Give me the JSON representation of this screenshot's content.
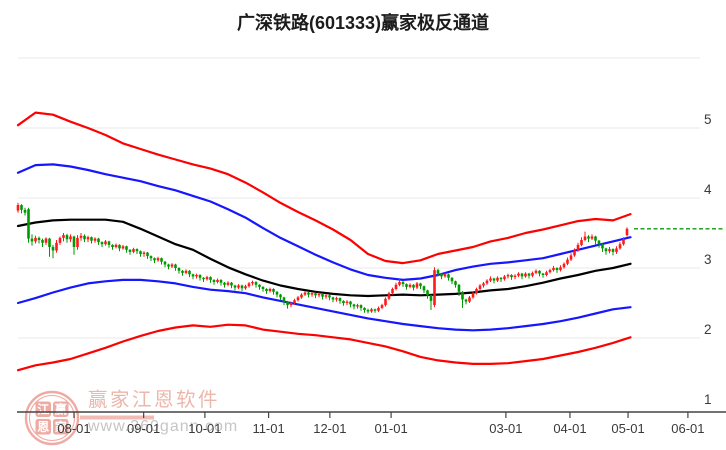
{
  "header": {
    "title": "广深铁路(601333)赢家极反通道"
  },
  "watermark": {
    "brand_text": "赢家江恩软件",
    "url_text": "www.360gann.com",
    "stamp_chars": [
      "江",
      "赢",
      "恩",
      "家"
    ]
  },
  "axes": {
    "y_labels": [
      "5",
      "4",
      "3",
      "2",
      "1"
    ],
    "y_values": [
      5,
      4,
      3,
      2,
      1
    ],
    "x_ticks": [
      {
        "label": "08-01",
        "index": 16
      },
      {
        "label": "09-01",
        "index": 35.9
      },
      {
        "label": "10-01",
        "index": 53.4
      },
      {
        "label": "11-01",
        "index": 71.6
      },
      {
        "label": "12-01",
        "index": 89.1
      },
      {
        "label": "01-01",
        "index": 106.6
      },
      {
        "label": "03-01",
        "index": 139.4
      },
      {
        "label": "04-01",
        "index": 157.7
      },
      {
        "label": "05-01",
        "index": 174.3
      },
      {
        "label": "06-01",
        "index": 191.4
      }
    ]
  },
  "chart_data": {
    "type": "candlestick",
    "title": "广深铁路(601333)赢家极反通道",
    "ylim": [
      1,
      6
    ],
    "grid_values": [
      2,
      3,
      4,
      5,
      6
    ],
    "grid_on": true,
    "legend_position": "none",
    "current_price": 3.56,
    "colors": {
      "up": "#fe1a1a",
      "down": "#009a00",
      "outer_band": "#fe0000",
      "inner_band": "#1616ff",
      "mid_band": "#000000",
      "current_price_line": "#0a9b0a",
      "grid": "#e9e9e9",
      "axis": "#444444",
      "tick_label": "#3a3a3a",
      "title": "#1c1c1c",
      "watermark_red": "rgba(222,110,92,0.55)",
      "watermark_gray": "#bfbfbf"
    },
    "candles_ohlc_format": [
      "open",
      "close",
      "low",
      "high"
    ],
    "candles": [
      [
        3.82,
        3.9,
        3.79,
        3.93
      ],
      [
        3.9,
        3.83,
        3.78,
        3.91
      ],
      [
        3.83,
        3.79,
        3.75,
        3.86
      ],
      [
        3.84,
        3.42,
        3.36,
        3.86
      ],
      [
        3.42,
        3.38,
        3.32,
        3.48
      ],
      [
        3.38,
        3.43,
        3.35,
        3.46
      ],
      [
        3.43,
        3.4,
        3.35,
        3.45
      ],
      [
        3.4,
        3.36,
        3.3,
        3.42
      ],
      [
        3.36,
        3.42,
        3.33,
        3.44
      ],
      [
        3.42,
        3.3,
        3.16,
        3.43
      ],
      [
        3.3,
        3.25,
        3.14,
        3.33
      ],
      [
        3.25,
        3.36,
        3.22,
        3.4
      ],
      [
        3.36,
        3.43,
        3.33,
        3.45
      ],
      [
        3.43,
        3.47,
        3.38,
        3.5
      ],
      [
        3.47,
        3.41,
        3.36,
        3.49
      ],
      [
        3.41,
        3.45,
        3.37,
        3.48
      ],
      [
        3.45,
        3.3,
        3.19,
        3.46
      ],
      [
        3.3,
        3.43,
        3.26,
        3.47
      ],
      [
        3.43,
        3.46,
        3.39,
        3.5
      ],
      [
        3.46,
        3.41,
        3.37,
        3.48
      ],
      [
        3.41,
        3.44,
        3.37,
        3.46
      ],
      [
        3.44,
        3.39,
        3.35,
        3.45
      ],
      [
        3.39,
        3.42,
        3.36,
        3.44
      ],
      [
        3.42,
        3.37,
        3.33,
        3.43
      ],
      [
        3.37,
        3.34,
        3.3,
        3.38
      ],
      [
        3.34,
        3.38,
        3.32,
        3.4
      ],
      [
        3.38,
        3.33,
        3.29,
        3.39
      ],
      [
        3.33,
        3.3,
        3.26,
        3.34
      ],
      [
        3.3,
        3.33,
        3.28,
        3.35
      ],
      [
        3.33,
        3.28,
        3.24,
        3.34
      ],
      [
        3.28,
        3.31,
        3.26,
        3.33
      ],
      [
        3.31,
        3.26,
        3.22,
        3.32
      ],
      [
        3.26,
        3.23,
        3.19,
        3.27
      ],
      [
        3.23,
        3.27,
        3.21,
        3.29
      ],
      [
        3.27,
        3.24,
        3.2,
        3.28
      ],
      [
        3.24,
        3.2,
        3.16,
        3.25
      ],
      [
        3.2,
        3.22,
        3.16,
        3.24
      ],
      [
        3.22,
        3.17,
        3.13,
        3.23
      ],
      [
        3.17,
        3.14,
        3.1,
        3.18
      ],
      [
        3.14,
        3.11,
        3.07,
        3.15
      ],
      [
        3.11,
        3.14,
        3.09,
        3.16
      ],
      [
        3.14,
        3.09,
        3.05,
        3.15
      ],
      [
        3.09,
        3.05,
        3.01,
        3.1
      ],
      [
        3.05,
        3.02,
        2.98,
        3.06
      ],
      [
        3.02,
        3.05,
        3.0,
        3.07
      ],
      [
        3.05,
        3.0,
        2.96,
        3.06
      ],
      [
        3.0,
        2.96,
        2.92,
        3.01
      ],
      [
        2.96,
        2.93,
        2.89,
        2.97
      ],
      [
        2.93,
        2.96,
        2.91,
        2.98
      ],
      [
        2.96,
        2.91,
        2.87,
        2.97
      ],
      [
        2.91,
        2.88,
        2.84,
        2.92
      ],
      [
        2.88,
        2.9,
        2.85,
        2.92
      ],
      [
        2.9,
        2.86,
        2.82,
        2.91
      ],
      [
        2.86,
        2.84,
        2.8,
        2.87
      ],
      [
        2.84,
        2.87,
        2.82,
        2.89
      ],
      [
        2.87,
        2.83,
        2.79,
        2.88
      ],
      [
        2.83,
        2.8,
        2.76,
        2.84
      ],
      [
        2.8,
        2.83,
        2.78,
        2.85
      ],
      [
        2.83,
        2.79,
        2.75,
        2.84
      ],
      [
        2.79,
        2.76,
        2.72,
        2.8
      ],
      [
        2.76,
        2.79,
        2.74,
        2.81
      ],
      [
        2.79,
        2.75,
        2.71,
        2.8
      ],
      [
        2.75,
        2.72,
        2.68,
        2.76
      ],
      [
        2.72,
        2.75,
        2.7,
        2.77
      ],
      [
        2.75,
        2.71,
        2.67,
        2.76
      ],
      [
        2.71,
        2.74,
        2.69,
        2.76
      ],
      [
        2.74,
        2.78,
        2.72,
        2.8
      ],
      [
        2.78,
        2.8,
        2.75,
        2.82
      ],
      [
        2.8,
        2.76,
        2.72,
        2.81
      ],
      [
        2.76,
        2.73,
        2.69,
        2.77
      ],
      [
        2.73,
        2.7,
        2.66,
        2.74
      ],
      [
        2.7,
        2.67,
        2.63,
        2.71
      ],
      [
        2.67,
        2.7,
        2.65,
        2.72
      ],
      [
        2.7,
        2.66,
        2.62,
        2.71
      ],
      [
        2.66,
        2.62,
        2.58,
        2.67
      ],
      [
        2.62,
        2.58,
        2.54,
        2.63
      ],
      [
        2.58,
        2.52,
        2.47,
        2.59
      ],
      [
        2.52,
        2.47,
        2.42,
        2.53
      ],
      [
        2.47,
        2.5,
        2.44,
        2.52
      ],
      [
        2.5,
        2.54,
        2.48,
        2.56
      ],
      [
        2.54,
        2.58,
        2.52,
        2.6
      ],
      [
        2.58,
        2.62,
        2.56,
        2.64
      ],
      [
        2.62,
        2.65,
        2.6,
        2.67
      ],
      [
        2.65,
        2.62,
        2.58,
        2.66
      ],
      [
        2.62,
        2.64,
        2.59,
        2.66
      ],
      [
        2.64,
        2.61,
        2.57,
        2.65
      ],
      [
        2.61,
        2.63,
        2.58,
        2.65
      ],
      [
        2.63,
        2.59,
        2.55,
        2.64
      ],
      [
        2.59,
        2.61,
        2.56,
        2.63
      ],
      [
        2.61,
        2.58,
        2.54,
        2.62
      ],
      [
        2.58,
        2.55,
        2.51,
        2.59
      ],
      [
        2.55,
        2.57,
        2.52,
        2.59
      ],
      [
        2.57,
        2.53,
        2.49,
        2.58
      ],
      [
        2.53,
        2.5,
        2.46,
        2.54
      ],
      [
        2.5,
        2.52,
        2.47,
        2.54
      ],
      [
        2.52,
        2.48,
        2.44,
        2.53
      ],
      [
        2.48,
        2.45,
        2.41,
        2.49
      ],
      [
        2.45,
        2.47,
        2.42,
        2.49
      ],
      [
        2.47,
        2.43,
        2.39,
        2.48
      ],
      [
        2.43,
        2.4,
        2.36,
        2.44
      ],
      [
        2.4,
        2.38,
        2.35,
        2.42
      ],
      [
        2.38,
        2.41,
        2.36,
        2.43
      ],
      [
        2.41,
        2.39,
        2.36,
        2.42
      ],
      [
        2.39,
        2.43,
        2.37,
        2.45
      ],
      [
        2.43,
        2.47,
        2.41,
        2.49
      ],
      [
        2.47,
        2.56,
        2.45,
        2.58
      ],
      [
        2.56,
        2.64,
        2.54,
        2.66
      ],
      [
        2.64,
        2.7,
        2.62,
        2.72
      ],
      [
        2.7,
        2.76,
        2.68,
        2.79
      ],
      [
        2.76,
        2.8,
        2.74,
        2.84
      ],
      [
        2.8,
        2.77,
        2.73,
        2.82
      ],
      [
        2.77,
        2.73,
        2.69,
        2.78
      ],
      [
        2.73,
        2.76,
        2.71,
        2.78
      ],
      [
        2.76,
        2.72,
        2.68,
        2.77
      ],
      [
        2.72,
        2.78,
        2.7,
        2.8
      ],
      [
        2.78,
        2.74,
        2.7,
        2.79
      ],
      [
        2.74,
        2.68,
        2.64,
        2.75
      ],
      [
        2.68,
        2.61,
        2.56,
        2.69
      ],
      [
        2.61,
        2.53,
        2.4,
        2.62
      ],
      [
        2.47,
        2.97,
        2.44,
        3.01
      ],
      [
        2.97,
        2.92,
        2.88,
        2.99
      ],
      [
        2.92,
        2.88,
        2.84,
        2.93
      ],
      [
        2.88,
        2.91,
        2.86,
        2.93
      ],
      [
        2.91,
        2.86,
        2.82,
        2.92
      ],
      [
        2.86,
        2.81,
        2.77,
        2.87
      ],
      [
        2.81,
        2.76,
        2.72,
        2.82
      ],
      [
        2.76,
        2.66,
        2.6,
        2.77
      ],
      [
        2.66,
        2.55,
        2.43,
        2.67
      ],
      [
        2.55,
        2.52,
        2.48,
        2.56
      ],
      [
        2.52,
        2.58,
        2.5,
        2.6
      ],
      [
        2.58,
        2.64,
        2.56,
        2.66
      ],
      [
        2.64,
        2.7,
        2.62,
        2.72
      ],
      [
        2.7,
        2.75,
        2.68,
        2.77
      ],
      [
        2.75,
        2.78,
        2.72,
        2.8
      ],
      [
        2.78,
        2.82,
        2.76,
        2.84
      ],
      [
        2.82,
        2.85,
        2.8,
        2.88
      ],
      [
        2.85,
        2.82,
        2.78,
        2.86
      ],
      [
        2.82,
        2.86,
        2.8,
        2.88
      ],
      [
        2.86,
        2.84,
        2.8,
        2.87
      ],
      [
        2.84,
        2.88,
        2.82,
        2.9
      ],
      [
        2.88,
        2.9,
        2.85,
        2.92
      ],
      [
        2.9,
        2.87,
        2.83,
        2.91
      ],
      [
        2.87,
        2.89,
        2.84,
        2.91
      ],
      [
        2.89,
        2.92,
        2.87,
        2.94
      ],
      [
        2.92,
        2.88,
        2.84,
        2.93
      ],
      [
        2.88,
        2.92,
        2.86,
        2.94
      ],
      [
        2.92,
        2.89,
        2.85,
        2.93
      ],
      [
        2.89,
        2.93,
        2.87,
        2.95
      ],
      [
        2.93,
        2.96,
        2.91,
        2.98
      ],
      [
        2.96,
        2.92,
        2.88,
        2.97
      ],
      [
        2.92,
        2.9,
        2.86,
        2.93
      ],
      [
        2.9,
        2.94,
        2.88,
        2.96
      ],
      [
        2.94,
        2.97,
        2.92,
        2.99
      ],
      [
        2.97,
        3.0,
        2.95,
        3.03
      ],
      [
        3.0,
        2.97,
        2.93,
        3.01
      ],
      [
        2.97,
        3.01,
        2.95,
        3.04
      ],
      [
        3.01,
        3.06,
        2.99,
        3.08
      ],
      [
        3.06,
        3.12,
        3.04,
        3.15
      ],
      [
        3.12,
        3.18,
        3.1,
        3.21
      ],
      [
        3.18,
        3.25,
        3.16,
        3.28
      ],
      [
        3.25,
        3.33,
        3.23,
        3.36
      ],
      [
        3.33,
        3.4,
        3.31,
        3.44
      ],
      [
        3.4,
        3.45,
        3.38,
        3.52
      ],
      [
        3.45,
        3.42,
        3.37,
        3.47
      ],
      [
        3.42,
        3.45,
        3.4,
        3.48
      ],
      [
        3.45,
        3.39,
        3.34,
        3.46
      ],
      [
        3.39,
        3.34,
        3.29,
        3.4
      ],
      [
        3.34,
        3.28,
        3.23,
        3.35
      ],
      [
        3.28,
        3.24,
        3.19,
        3.29
      ],
      [
        3.24,
        3.27,
        3.21,
        3.3
      ],
      [
        3.27,
        3.23,
        3.18,
        3.28
      ],
      [
        3.23,
        3.28,
        3.2,
        3.31
      ],
      [
        3.28,
        3.34,
        3.26,
        3.37
      ],
      [
        3.34,
        3.41,
        3.32,
        3.44
      ],
      [
        3.47,
        3.56,
        3.45,
        3.58
      ]
    ],
    "channel_lines": [
      {
        "name": "outer-upper-red-band",
        "color": "#fe0000",
        "width": 2.2,
        "step": 5,
        "values": [
          5.04,
          5.22,
          5.19,
          5.09,
          5.0,
          4.9,
          4.78,
          4.7,
          4.62,
          4.55,
          4.48,
          4.42,
          4.34,
          4.22,
          4.08,
          3.93,
          3.8,
          3.68,
          3.55,
          3.4,
          3.2,
          3.1,
          3.07,
          3.11,
          3.2,
          3.25,
          3.3,
          3.38,
          3.43,
          3.5,
          3.55,
          3.61,
          3.67,
          3.7,
          3.68,
          3.77
        ]
      },
      {
        "name": "inner-upper-blue-band",
        "color": "#1616ff",
        "width": 2.2,
        "step": 5,
        "values": [
          4.36,
          4.47,
          4.48,
          4.45,
          4.4,
          4.34,
          4.29,
          4.24,
          4.17,
          4.11,
          4.03,
          3.95,
          3.84,
          3.72,
          3.57,
          3.43,
          3.31,
          3.19,
          3.08,
          2.98,
          2.9,
          2.86,
          2.83,
          2.85,
          2.9,
          2.97,
          3.02,
          3.06,
          3.08,
          3.11,
          3.14,
          3.2,
          3.26,
          3.32,
          3.38,
          3.44
        ]
      },
      {
        "name": "middle-black-line",
        "color": "#000000",
        "width": 2.2,
        "step": 5,
        "values": [
          3.6,
          3.65,
          3.68,
          3.69,
          3.69,
          3.69,
          3.66,
          3.56,
          3.45,
          3.34,
          3.26,
          3.13,
          3.01,
          2.91,
          2.82,
          2.75,
          2.7,
          2.66,
          2.63,
          2.61,
          2.6,
          2.61,
          2.62,
          2.61,
          2.62,
          2.63,
          2.65,
          2.68,
          2.7,
          2.74,
          2.79,
          2.85,
          2.9,
          2.96,
          3.0,
          3.06
        ]
      },
      {
        "name": "inner-lower-blue-band",
        "color": "#1616ff",
        "width": 2.2,
        "step": 5,
        "values": [
          2.5,
          2.57,
          2.65,
          2.72,
          2.78,
          2.81,
          2.83,
          2.83,
          2.81,
          2.78,
          2.73,
          2.69,
          2.67,
          2.64,
          2.58,
          2.53,
          2.48,
          2.43,
          2.38,
          2.33,
          2.28,
          2.24,
          2.2,
          2.17,
          2.14,
          2.12,
          2.11,
          2.12,
          2.14,
          2.17,
          2.2,
          2.24,
          2.29,
          2.35,
          2.41,
          2.44
        ]
      },
      {
        "name": "outer-lower-red-band",
        "color": "#fe0000",
        "width": 2.2,
        "step": 5,
        "values": [
          1.54,
          1.61,
          1.65,
          1.7,
          1.78,
          1.86,
          1.95,
          2.03,
          2.1,
          2.15,
          2.18,
          2.16,
          2.19,
          2.18,
          2.12,
          2.09,
          2.06,
          2.04,
          2.01,
          1.98,
          1.93,
          1.88,
          1.81,
          1.73,
          1.68,
          1.65,
          1.63,
          1.63,
          1.64,
          1.67,
          1.7,
          1.75,
          1.8,
          1.86,
          1.93,
          2.01
        ]
      }
    ]
  }
}
